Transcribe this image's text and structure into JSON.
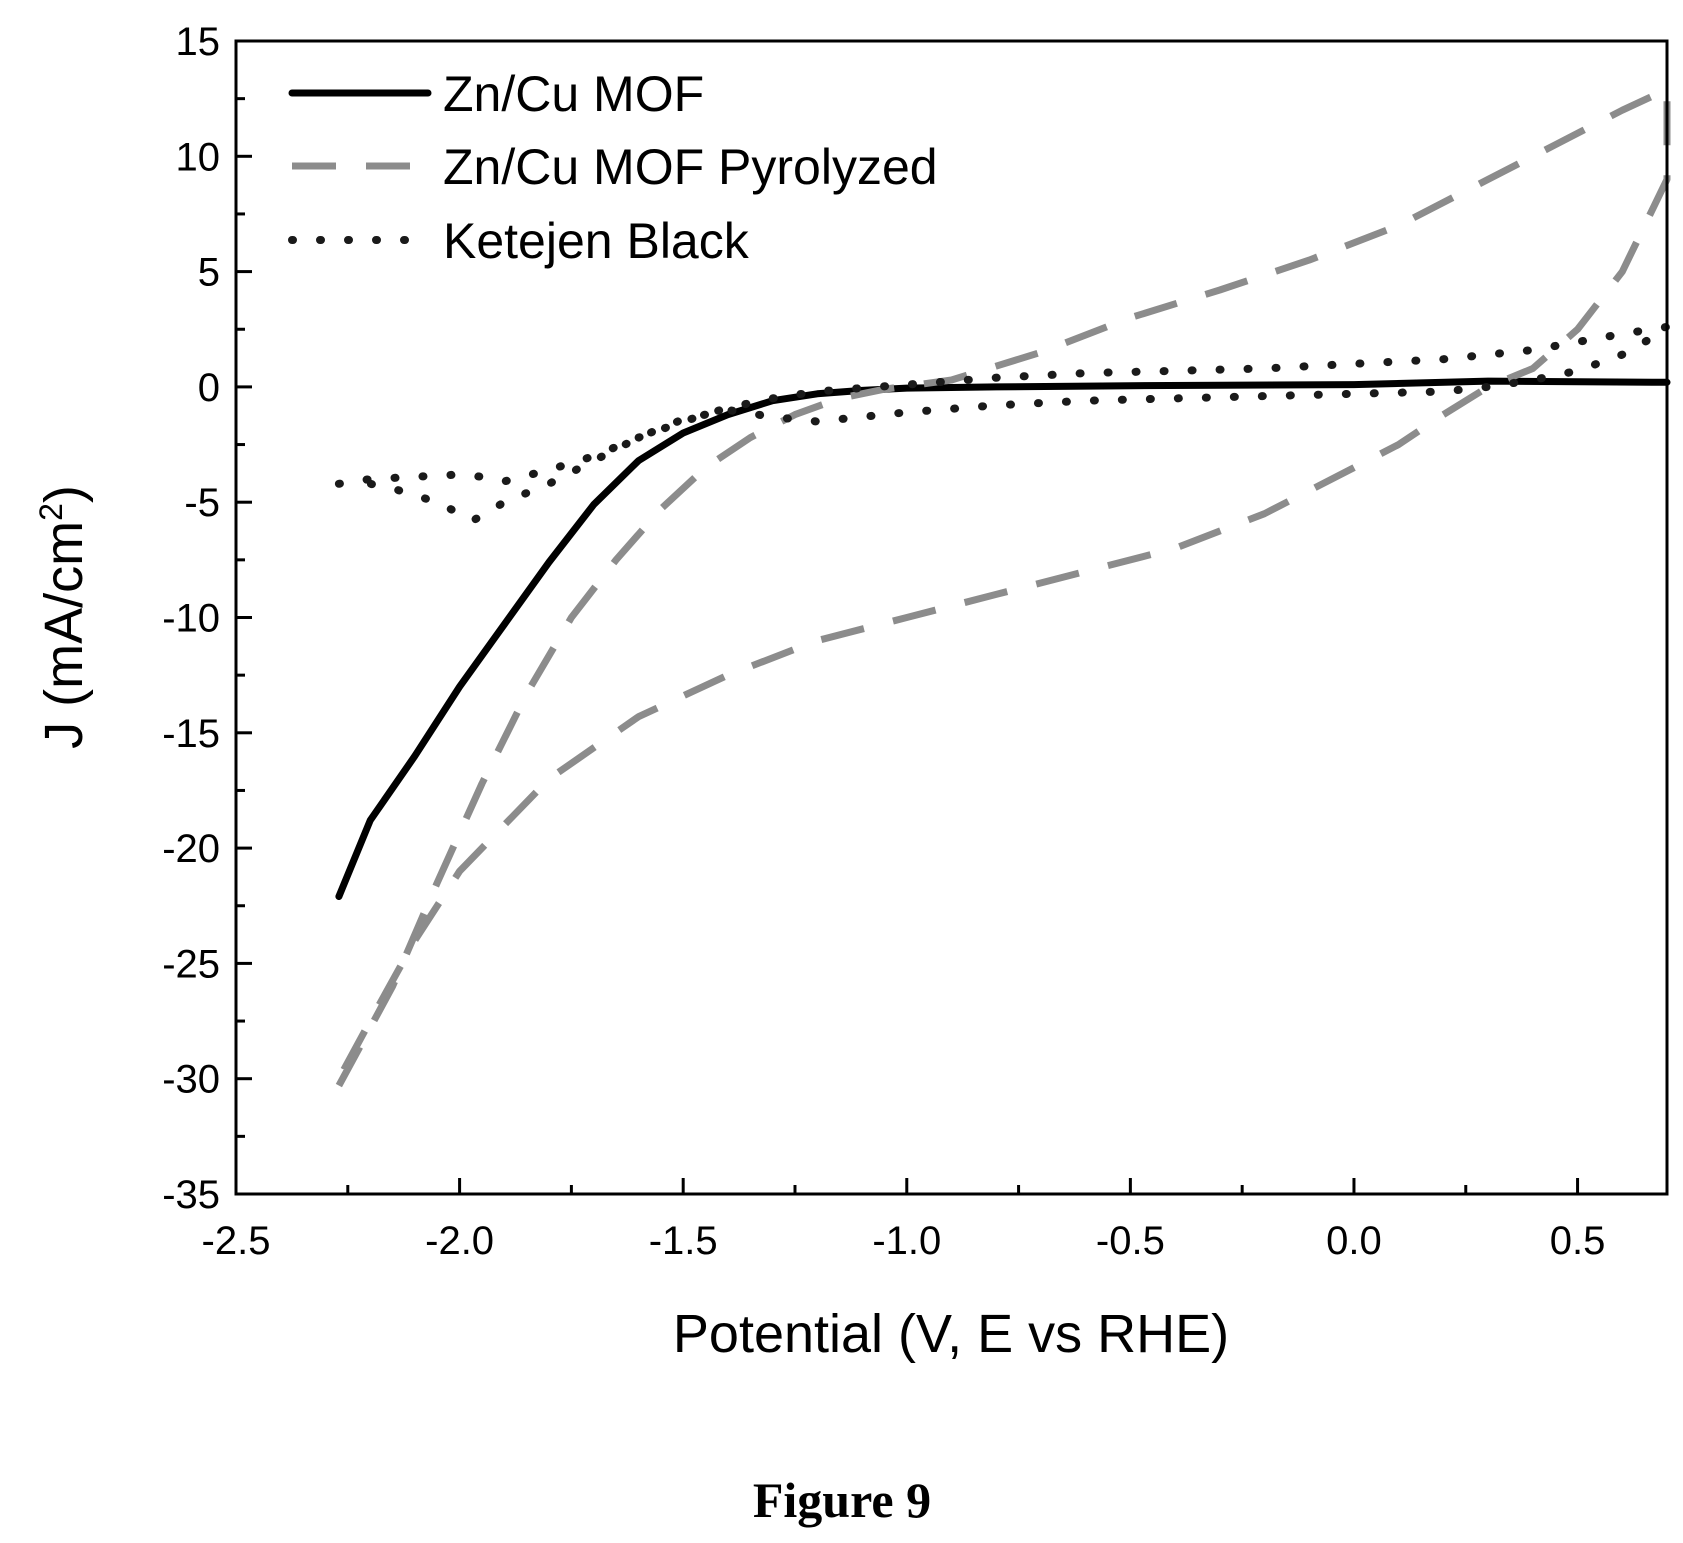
{
  "figure_caption": "Figure 9",
  "chart_data": {
    "type": "line",
    "xlabel": "Potential (V, E vs RHE)",
    "ylabel_main": "J (mA/cm",
    "ylabel_sup": "2",
    "ylabel_end": ")",
    "xlim": [
      -2.5,
      0.7
    ],
    "ylim": [
      -35,
      15
    ],
    "x_ticks": [
      -2.5,
      -2.0,
      -1.5,
      -1.0,
      -0.5,
      0.0,
      0.5
    ],
    "x_tick_labels": [
      "-2.5",
      "-2.0",
      "-1.5",
      "-1.0",
      "-0.5",
      "0.0",
      "0.5"
    ],
    "y_ticks": [
      15,
      10,
      5,
      0,
      -5,
      -10,
      -15,
      -20,
      -25,
      -30,
      -35
    ],
    "y_tick_labels": [
      "15",
      "10",
      "5",
      "0",
      "-5",
      "-10",
      "-15",
      "-20",
      "-25",
      "-30",
      "-35"
    ],
    "grid": false,
    "legend_position": "top-left",
    "series": [
      {
        "name": "Zn/Cu MOF",
        "style": "solid",
        "color": "#000000",
        "x": [
          -2.27,
          -2.2,
          -2.1,
          -2.0,
          -1.9,
          -1.8,
          -1.7,
          -1.6,
          -1.5,
          -1.4,
          -1.3,
          -1.2,
          -1.1,
          -1.0,
          -0.8,
          -0.5,
          0.0,
          0.3,
          0.7
        ],
        "y": [
          -22.1,
          -18.8,
          -16.0,
          -13.0,
          -10.3,
          -7.6,
          -5.1,
          -3.2,
          -2.0,
          -1.2,
          -0.6,
          -0.3,
          -0.15,
          -0.05,
          0.0,
          0.05,
          0.1,
          0.25,
          0.2
        ]
      },
      {
        "name": "Zn/Cu MOF Pyrolyzed",
        "style": "dashed",
        "color": "#8c8c8c",
        "x": [
          -2.27,
          -2.15,
          -2.05,
          -1.95,
          -1.85,
          -1.75,
          -1.65,
          -1.55,
          -1.45,
          -1.35,
          -1.25,
          -1.15,
          -1.05,
          -0.9,
          -0.7,
          -0.5,
          -0.3,
          -0.1,
          0.1,
          0.3,
          0.45,
          0.6,
          0.7,
          0.7,
          0.6,
          0.5,
          0.4,
          0.3,
          0.2,
          0.1,
          0.0,
          -0.2,
          -0.4,
          -0.6,
          -0.8,
          -1.0,
          -1.2,
          -1.4,
          -1.6,
          -1.8,
          -2.0,
          -2.1,
          -2.2,
          -2.27
        ],
        "y": [
          -30.3,
          -26.0,
          -21.5,
          -17.2,
          -13.3,
          -10.0,
          -7.5,
          -5.3,
          -3.5,
          -2.2,
          -1.2,
          -0.5,
          -0.1,
          0.3,
          1.5,
          3.0,
          4.2,
          5.5,
          7.0,
          9.0,
          10.5,
          12.0,
          12.9,
          9.0,
          5.0,
          2.5,
          0.8,
          0.0,
          -1.2,
          -2.5,
          -3.5,
          -5.5,
          -7.0,
          -8.0,
          -9.0,
          -10.0,
          -11.0,
          -12.5,
          -14.3,
          -17.0,
          -21.0,
          -24.0,
          -27.5,
          -30.0
        ]
      },
      {
        "name": "Ketejen Black",
        "style": "dotted",
        "color": "#1a1a1a",
        "x": [
          -2.27,
          -2.2,
          -2.1,
          -2.0,
          -1.95,
          -1.9,
          -1.8,
          -1.7,
          -1.6,
          -1.5,
          -1.4,
          -1.3,
          -1.2,
          -1.0,
          -0.8,
          -0.6,
          -0.4,
          -0.2,
          0.0,
          0.2,
          0.4,
          0.6,
          0.7,
          0.7,
          0.6,
          0.5,
          0.4,
          0.3,
          0.2,
          0.0,
          -0.2,
          -0.4,
          -0.6,
          -0.8,
          -1.0,
          -1.1,
          -1.2,
          -1.3,
          -1.4,
          -1.5,
          -1.6,
          -1.7,
          -1.8,
          -1.9,
          -1.97,
          -2.05,
          -2.15,
          -2.2
        ],
        "y": [
          -4.2,
          -4.0,
          -3.9,
          -3.8,
          -3.9,
          -4.1,
          -3.6,
          -3.0,
          -2.2,
          -1.5,
          -0.9,
          -0.5,
          -0.2,
          0.1,
          0.4,
          0.6,
          0.7,
          0.8,
          1.0,
          1.2,
          1.6,
          2.3,
          2.6,
          2.5,
          1.4,
          0.7,
          0.3,
          0.0,
          -0.2,
          -0.3,
          -0.4,
          -0.5,
          -0.6,
          -0.8,
          -1.1,
          -1.3,
          -1.5,
          -1.3,
          -1.0,
          -1.4,
          -2.2,
          -3.2,
          -4.2,
          -5.0,
          -5.8,
          -5.0,
          -4.4,
          -4.2
        ]
      }
    ]
  }
}
